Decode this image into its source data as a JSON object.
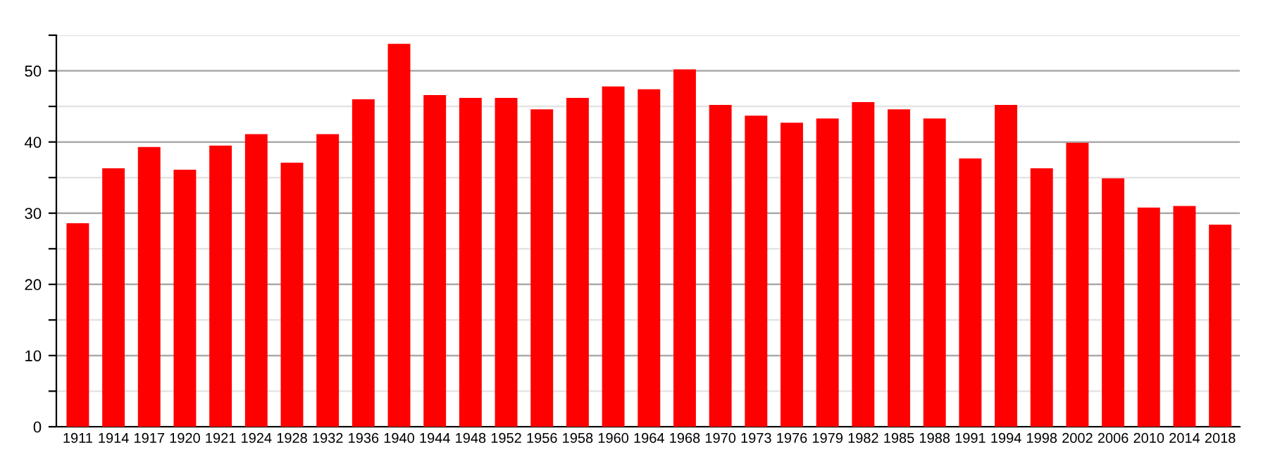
{
  "chart_data": {
    "type": "bar",
    "categories": [
      "1911",
      "1914",
      "1917",
      "1920",
      "1921",
      "1924",
      "1928",
      "1932",
      "1936",
      "1940",
      "1944",
      "1948",
      "1952",
      "1956",
      "1958",
      "1960",
      "1964",
      "1968",
      "1970",
      "1973",
      "1976",
      "1979",
      "1982",
      "1985",
      "1988",
      "1991",
      "1994",
      "1998",
      "2002",
      "2006",
      "2010",
      "2014",
      "2018"
    ],
    "values": [
      28.6,
      36.3,
      39.3,
      36.1,
      39.5,
      41.1,
      37.1,
      41.1,
      46.0,
      53.8,
      46.6,
      46.2,
      46.2,
      44.6,
      46.2,
      47.8,
      47.4,
      50.2,
      45.2,
      43.7,
      42.7,
      43.3,
      45.6,
      44.6,
      43.3,
      37.7,
      45.2,
      36.3,
      39.9,
      34.9,
      30.8,
      31.0,
      28.4
    ],
    "color": "#ff0000",
    "ylim": [
      0,
      55
    ],
    "yticks": [
      0,
      {
        "value": 5,
        "label": null
      },
      10,
      {
        "value": 15,
        "label": null
      },
      20,
      {
        "value": 25,
        "label": null
      },
      30,
      {
        "value": 35,
        "label": null
      },
      40,
      {
        "value": 45,
        "label": null
      },
      50,
      {
        "value": 55,
        "label": null
      }
    ],
    "grid": "y"
  }
}
